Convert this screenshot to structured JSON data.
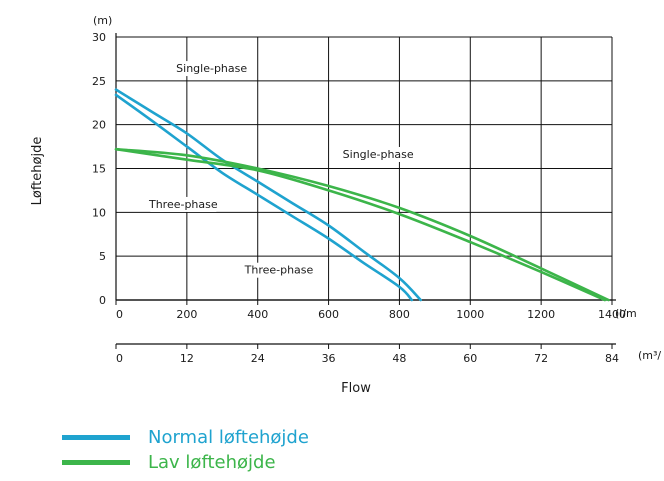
{
  "chart_data": {
    "type": "line",
    "y_unit": "(m)",
    "ylabel": "Løftehøjde",
    "xlabel": "Flow",
    "x_unit_primary": "(l/m",
    "x_unit_secondary": "(m³/",
    "ylim": [
      0,
      30
    ],
    "xlim": [
      0,
      1400
    ],
    "y_ticks": [
      0,
      5,
      10,
      15,
      20,
      25,
      30
    ],
    "x_ticks_primary": [
      0,
      200,
      400,
      600,
      800,
      1000,
      1200,
      1400
    ],
    "x_ticks_secondary": [
      0,
      12,
      24,
      36,
      48,
      60,
      72,
      84
    ],
    "grid": true,
    "legend_position": "bottom-left",
    "series": [
      {
        "name": "Normal løftehøjde",
        "color": "#1fa3cf",
        "curves": [
          [
            [
              0,
              24.0
            ],
            [
              100,
              21.5
            ],
            [
              200,
              19.0
            ],
            [
              300,
              16.0
            ],
            [
              400,
              13.5
            ],
            [
              500,
              11.0
            ],
            [
              600,
              8.5
            ],
            [
              700,
              5.5
            ],
            [
              800,
              2.5
            ],
            [
              860,
              0
            ]
          ],
          [
            [
              0,
              23.4
            ],
            [
              100,
              20.5
            ],
            [
              200,
              17.5
            ],
            [
              300,
              14.5
            ],
            [
              400,
              12.0
            ],
            [
              500,
              9.5
            ],
            [
              600,
              7.0
            ],
            [
              700,
              4.2
            ],
            [
              800,
              1.5
            ],
            [
              835,
              0
            ]
          ]
        ]
      },
      {
        "name": "Lav løftehøjde",
        "color": "#3cb54a",
        "curves": [
          [
            [
              0,
              17.2
            ],
            [
              200,
              16.5
            ],
            [
              400,
              15.0
            ],
            [
              600,
              13.0
            ],
            [
              800,
              10.5
            ],
            [
              1000,
              7.3
            ],
            [
              1200,
              3.6
            ],
            [
              1390,
              0
            ]
          ],
          [
            [
              0,
              17.2
            ],
            [
              200,
              16.0
            ],
            [
              400,
              14.8
            ],
            [
              600,
              12.5
            ],
            [
              800,
              9.8
            ],
            [
              1000,
              6.6
            ],
            [
              1200,
              3.2
            ],
            [
              1380,
              0
            ]
          ]
        ]
      }
    ],
    "annotations": [
      {
        "text": "Single-phase",
        "x": 270,
        "y": 26.0
      },
      {
        "text": "Single-phase",
        "x": 740,
        "y": 16.2
      },
      {
        "text": "Three-phase",
        "x": 190,
        "y": 10.5
      },
      {
        "text": "Three-phase",
        "x": 460,
        "y": 3.0
      }
    ]
  }
}
